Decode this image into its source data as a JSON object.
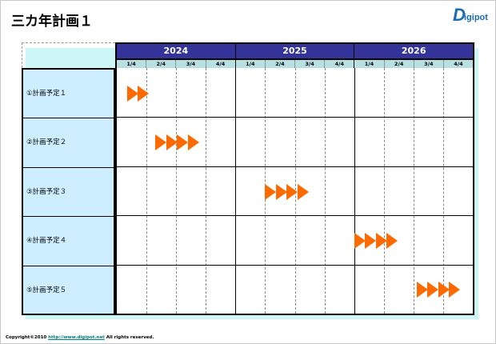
{
  "title": "三カ年計画１",
  "logo_text": "Digipot",
  "years": [
    "2024",
    "2025",
    "2026"
  ],
  "quarters": [
    "1/4",
    "2/4",
    "3/4",
    "4/4"
  ],
  "rows": [
    {
      "label": "①計画予定１",
      "start_quarter": 0.35,
      "arrows": 2
    },
    {
      "label": "②計画予定２",
      "start_quarter": 1.3,
      "arrows": 4
    },
    {
      "label": "③計画予定３",
      "start_quarter": 5.0,
      "arrows": 4
    },
    {
      "label": "④計画予定４",
      "start_quarter": 8.0,
      "arrows": 4
    },
    {
      "label": "⑤計画予定５",
      "start_quarter": 10.1,
      "arrows": 4
    }
  ],
  "arrow_color": "#ff6a00",
  "header_color": "#33339a",
  "footer": {
    "prefix": "Copyright©2010 ",
    "link": "http://www.digipot.net",
    "suffix": " All rights reserved."
  }
}
